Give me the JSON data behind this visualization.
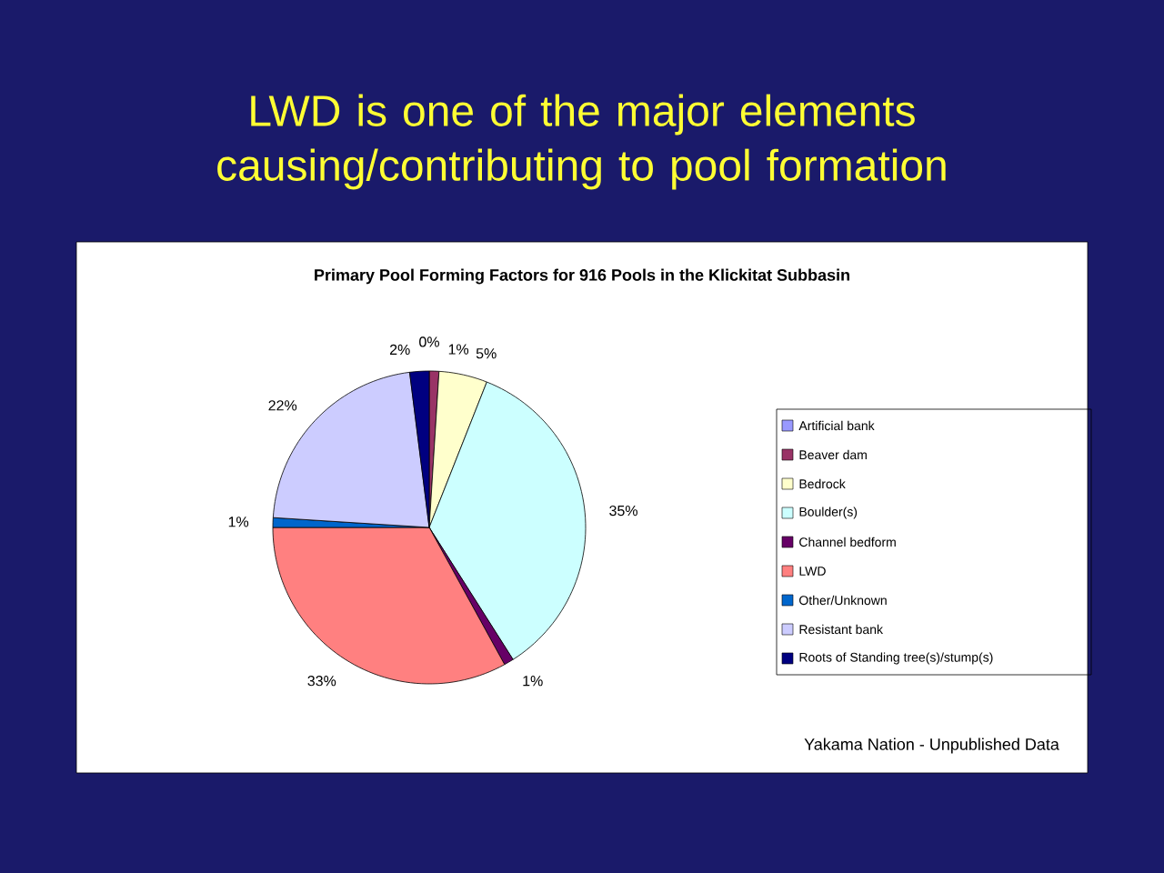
{
  "chart_data": {
    "type": "pie",
    "title": "LWD is one of the major elements causing/contributing to pool formation",
    "subtitle": "Primary Pool Forming Factors for 916 Pools in the Klickitat Subbasin",
    "categories": [
      "Artificial bank",
      "Beaver dam",
      "Bedrock",
      "Boulder(s)",
      "Channel bedform",
      "LWD",
      "Other/Unknown",
      "Resistant bank",
      "Roots of Standing tree(s)/stump(s)"
    ],
    "values": [
      0,
      1,
      5,
      35,
      1,
      33,
      1,
      22,
      2
    ],
    "value_labels": [
      "0%",
      "1%",
      "5%",
      "35%",
      "1%",
      "33%",
      "1%",
      "22%",
      "2%"
    ],
    "colors": [
      "#9999ff",
      "#993366",
      "#ffffcc",
      "#ccffff",
      "#660066",
      "#ff8080",
      "#0066cc",
      "#ccccff",
      "#000080"
    ],
    "legend": "right",
    "annotations": [
      "Yakama Nation - Unpublished Data"
    ]
  }
}
